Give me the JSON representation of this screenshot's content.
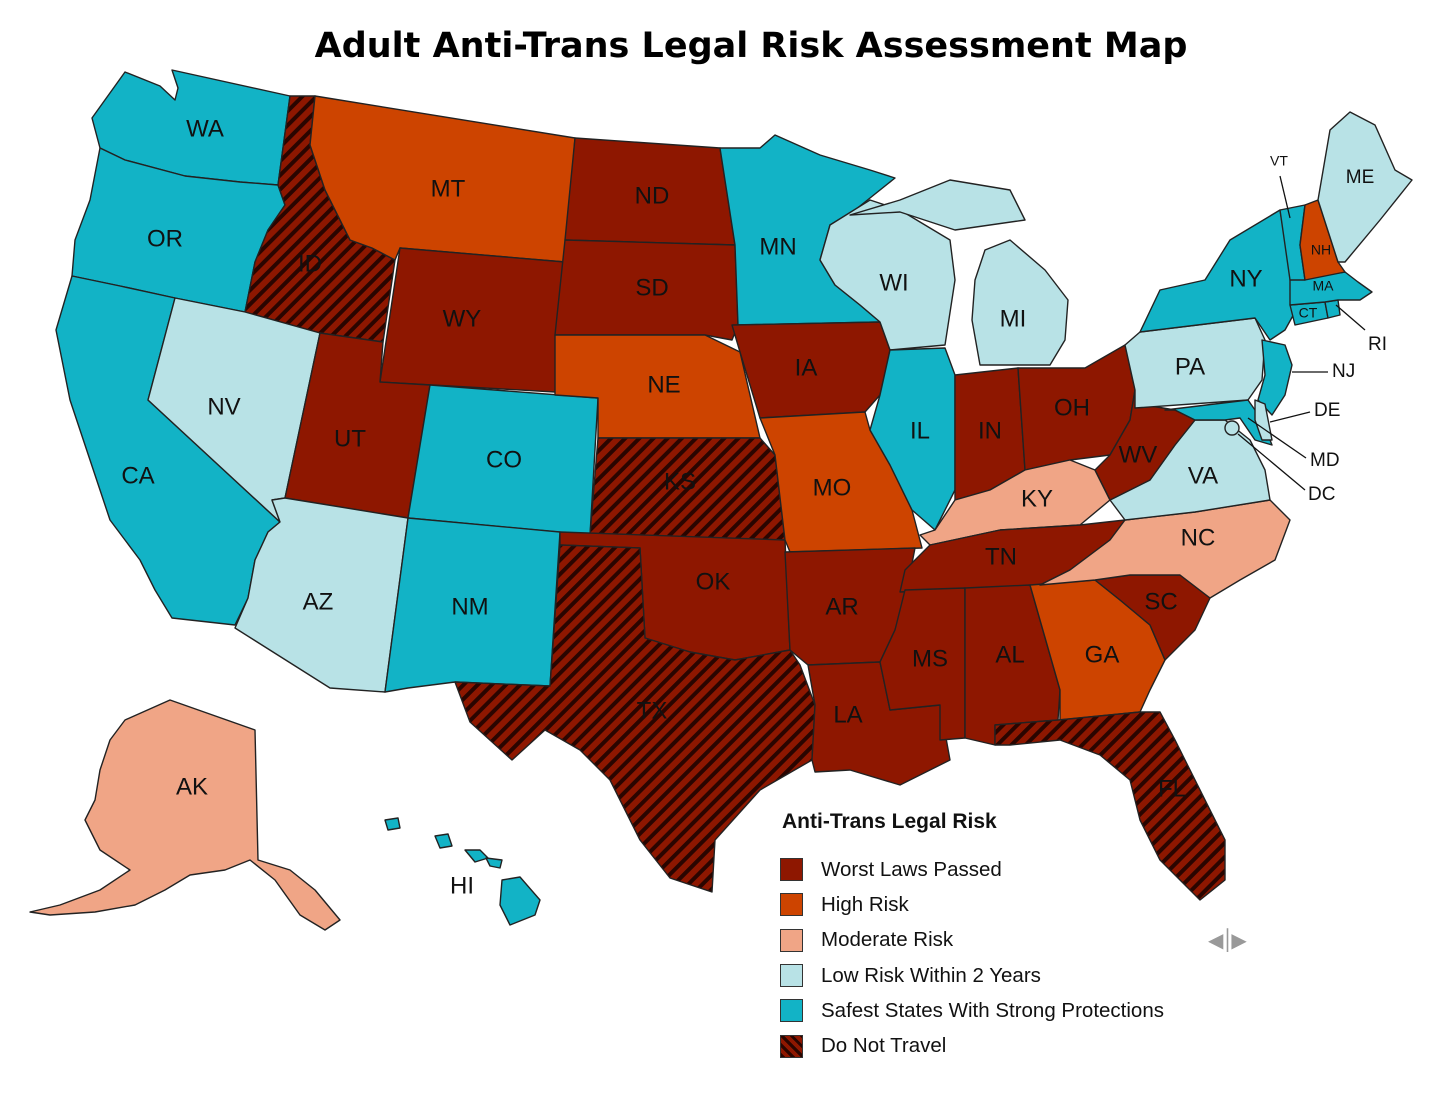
{
  "title": "Adult Anti-Trans Legal Risk Assessment Map",
  "risk_colors": {
    "worst": "#8e1700",
    "high": "#cd4400",
    "moderate": "#f0a586",
    "low": "#b8e2e6",
    "safest": "#12b3c6",
    "do_not_travel": "#8e1700",
    "hatch_stripe": "#2a0500"
  },
  "legend": {
    "title": "Anti-Trans Legal Risk",
    "items": [
      {
        "label": "Worst Laws Passed",
        "level": "worst"
      },
      {
        "label": "High Risk",
        "level": "high"
      },
      {
        "label": "Moderate Risk",
        "level": "moderate"
      },
      {
        "label": "Low Risk Within 2 Years",
        "level": "low"
      },
      {
        "label": "Safest States With Strong Protections",
        "level": "safest"
      },
      {
        "label": "Do Not Travel",
        "level": "do_not_travel"
      }
    ]
  },
  "states": {
    "WA": {
      "label": "WA",
      "level": "safest"
    },
    "OR": {
      "label": "OR",
      "level": "safest"
    },
    "CA": {
      "label": "CA",
      "level": "safest"
    },
    "ID": {
      "label": "ID",
      "level": "do_not_travel"
    },
    "NV": {
      "label": "NV",
      "level": "low"
    },
    "MT": {
      "label": "MT",
      "level": "high"
    },
    "WY": {
      "label": "WY",
      "level": "worst"
    },
    "UT": {
      "label": "UT",
      "level": "worst"
    },
    "AZ": {
      "label": "AZ",
      "level": "low"
    },
    "CO": {
      "label": "CO",
      "level": "safest"
    },
    "NM": {
      "label": "NM",
      "level": "safest"
    },
    "ND": {
      "label": "ND",
      "level": "worst"
    },
    "SD": {
      "label": "SD",
      "level": "worst"
    },
    "NE": {
      "label": "NE",
      "level": "high"
    },
    "KS": {
      "label": "KS",
      "level": "do_not_travel"
    },
    "OK": {
      "label": "OK",
      "level": "worst"
    },
    "TX": {
      "label": "TX",
      "level": "do_not_travel"
    },
    "MN": {
      "label": "MN",
      "level": "safest"
    },
    "IA": {
      "label": "IA",
      "level": "worst"
    },
    "MO": {
      "label": "MO",
      "level": "high"
    },
    "AR": {
      "label": "AR",
      "level": "worst"
    },
    "LA": {
      "label": "LA",
      "level": "worst"
    },
    "WI": {
      "label": "WI",
      "level": "low"
    },
    "IL": {
      "label": "IL",
      "level": "safest"
    },
    "MI": {
      "label": "MI",
      "level": "low"
    },
    "IN": {
      "label": "IN",
      "level": "worst"
    },
    "OH": {
      "label": "OH",
      "level": "worst"
    },
    "KY": {
      "label": "KY",
      "level": "moderate"
    },
    "TN": {
      "label": "TN",
      "level": "worst"
    },
    "MS": {
      "label": "MS",
      "level": "worst"
    },
    "AL": {
      "label": "AL",
      "level": "worst"
    },
    "GA": {
      "label": "GA",
      "level": "high"
    },
    "FL": {
      "label": "FL",
      "level": "do_not_travel"
    },
    "SC": {
      "label": "SC",
      "level": "worst"
    },
    "NC": {
      "label": "NC",
      "level": "moderate"
    },
    "VA": {
      "label": "VA",
      "level": "low"
    },
    "WV": {
      "label": "WV",
      "level": "worst"
    },
    "PA": {
      "label": "PA",
      "level": "low"
    },
    "NY": {
      "label": "NY",
      "level": "safest"
    },
    "NJ": {
      "label": "NJ",
      "level": "safest"
    },
    "DE": {
      "label": "DE",
      "level": "low"
    },
    "MD": {
      "label": "MD",
      "level": "safest"
    },
    "DC": {
      "label": "DC",
      "level": "low"
    },
    "CT": {
      "label": "CT",
      "level": "safest"
    },
    "RI": {
      "label": "RI",
      "level": "safest"
    },
    "MA": {
      "label": "MA",
      "level": "safest"
    },
    "VT": {
      "label": "VT",
      "level": "safest"
    },
    "NH": {
      "label": "NH",
      "level": "high"
    },
    "ME": {
      "label": "ME",
      "level": "low"
    },
    "AK": {
      "label": "AK",
      "level": "moderate"
    },
    "HI": {
      "label": "HI",
      "level": "safest"
    }
  }
}
